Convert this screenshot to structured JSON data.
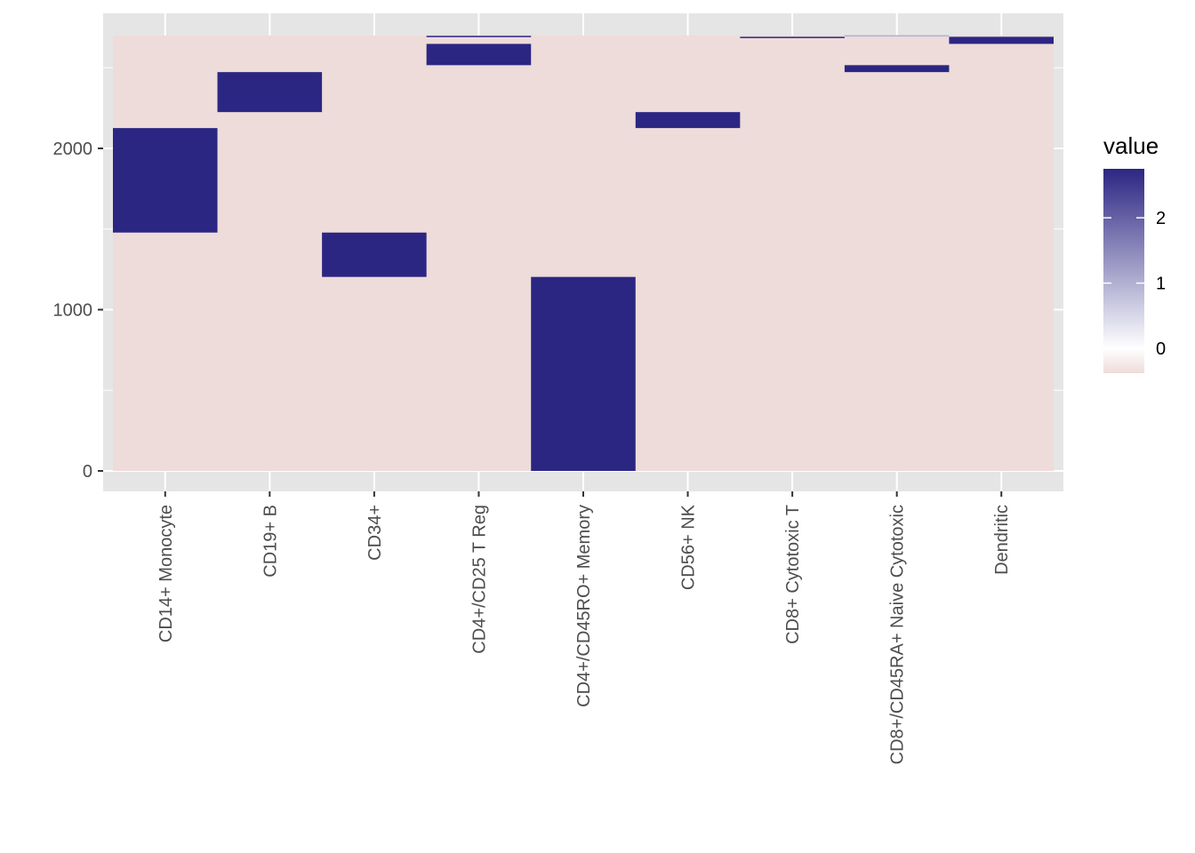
{
  "chart_data": {
    "type": "heatmap",
    "title": "",
    "xlabel": "",
    "ylabel": "",
    "categories": [
      "CD14+ Monocyte",
      "CD19+ B",
      "CD34+",
      "CD4+/CD25 T Reg",
      "CD4+/CD45RO+ Memory",
      "CD56+ NK",
      "CD8+ Cytotoxic T",
      "CD8+/CD45RA+ Naive Cytotoxic",
      "Dendritic"
    ],
    "y_range": [
      0,
      2700
    ],
    "ylim": [
      -120,
      2850
    ],
    "y_ticks": [
      0,
      1000,
      2000
    ],
    "y_tick_labels": [
      "0",
      "1000",
      "2000"
    ],
    "background_value": -0.38,
    "high_blocks": [
      {
        "category": "CD14+ Monocyte",
        "ymin": 1478,
        "ymax": 2126,
        "value": 2.75
      },
      {
        "category": "CD19+ B",
        "ymin": 2225,
        "ymax": 2473,
        "value": 2.75
      },
      {
        "category": "CD34+",
        "ymin": 1203,
        "ymax": 1478,
        "value": 2.75
      },
      {
        "category": "CD4+/CD25 T Reg",
        "ymin": 2516,
        "ymax": 2648,
        "value": 2.75
      },
      {
        "category": "CD4+/CD25 T Reg",
        "ymin": 2692,
        "ymax": 2698,
        "value": 2.75
      },
      {
        "category": "CD4+/CD45RO+ Memory",
        "ymin": 0,
        "ymax": 1203,
        "value": 2.75
      },
      {
        "category": "CD56+ NK",
        "ymin": 2126,
        "ymax": 2225,
        "value": 2.75
      },
      {
        "category": "CD8+ Cytotoxic T",
        "ymin": 2686,
        "ymax": 2692,
        "value": 2.75
      },
      {
        "category": "CD8+/CD45RA+ Naive Cytotoxic",
        "ymin": 2473,
        "ymax": 2516,
        "value": 2.75
      },
      {
        "category": "CD8+/CD45RA+ Naive Cytotoxic",
        "ymin": 2698,
        "ymax": 2702,
        "value": 1.0
      },
      {
        "category": "Dendritic",
        "ymin": 2648,
        "ymax": 2692,
        "value": 2.75
      }
    ],
    "legend": {
      "title": "value",
      "ticks": [
        0,
        1,
        2
      ],
      "tick_labels": [
        "0",
        "1",
        "2"
      ],
      "range": [
        -0.38,
        2.75
      ],
      "placement": "right",
      "low_color": "#EEDCDA",
      "mid_color": "#FFFFFF",
      "high_color": "#2C2683"
    },
    "panel_color": "#E5E5E5",
    "grid": true
  }
}
